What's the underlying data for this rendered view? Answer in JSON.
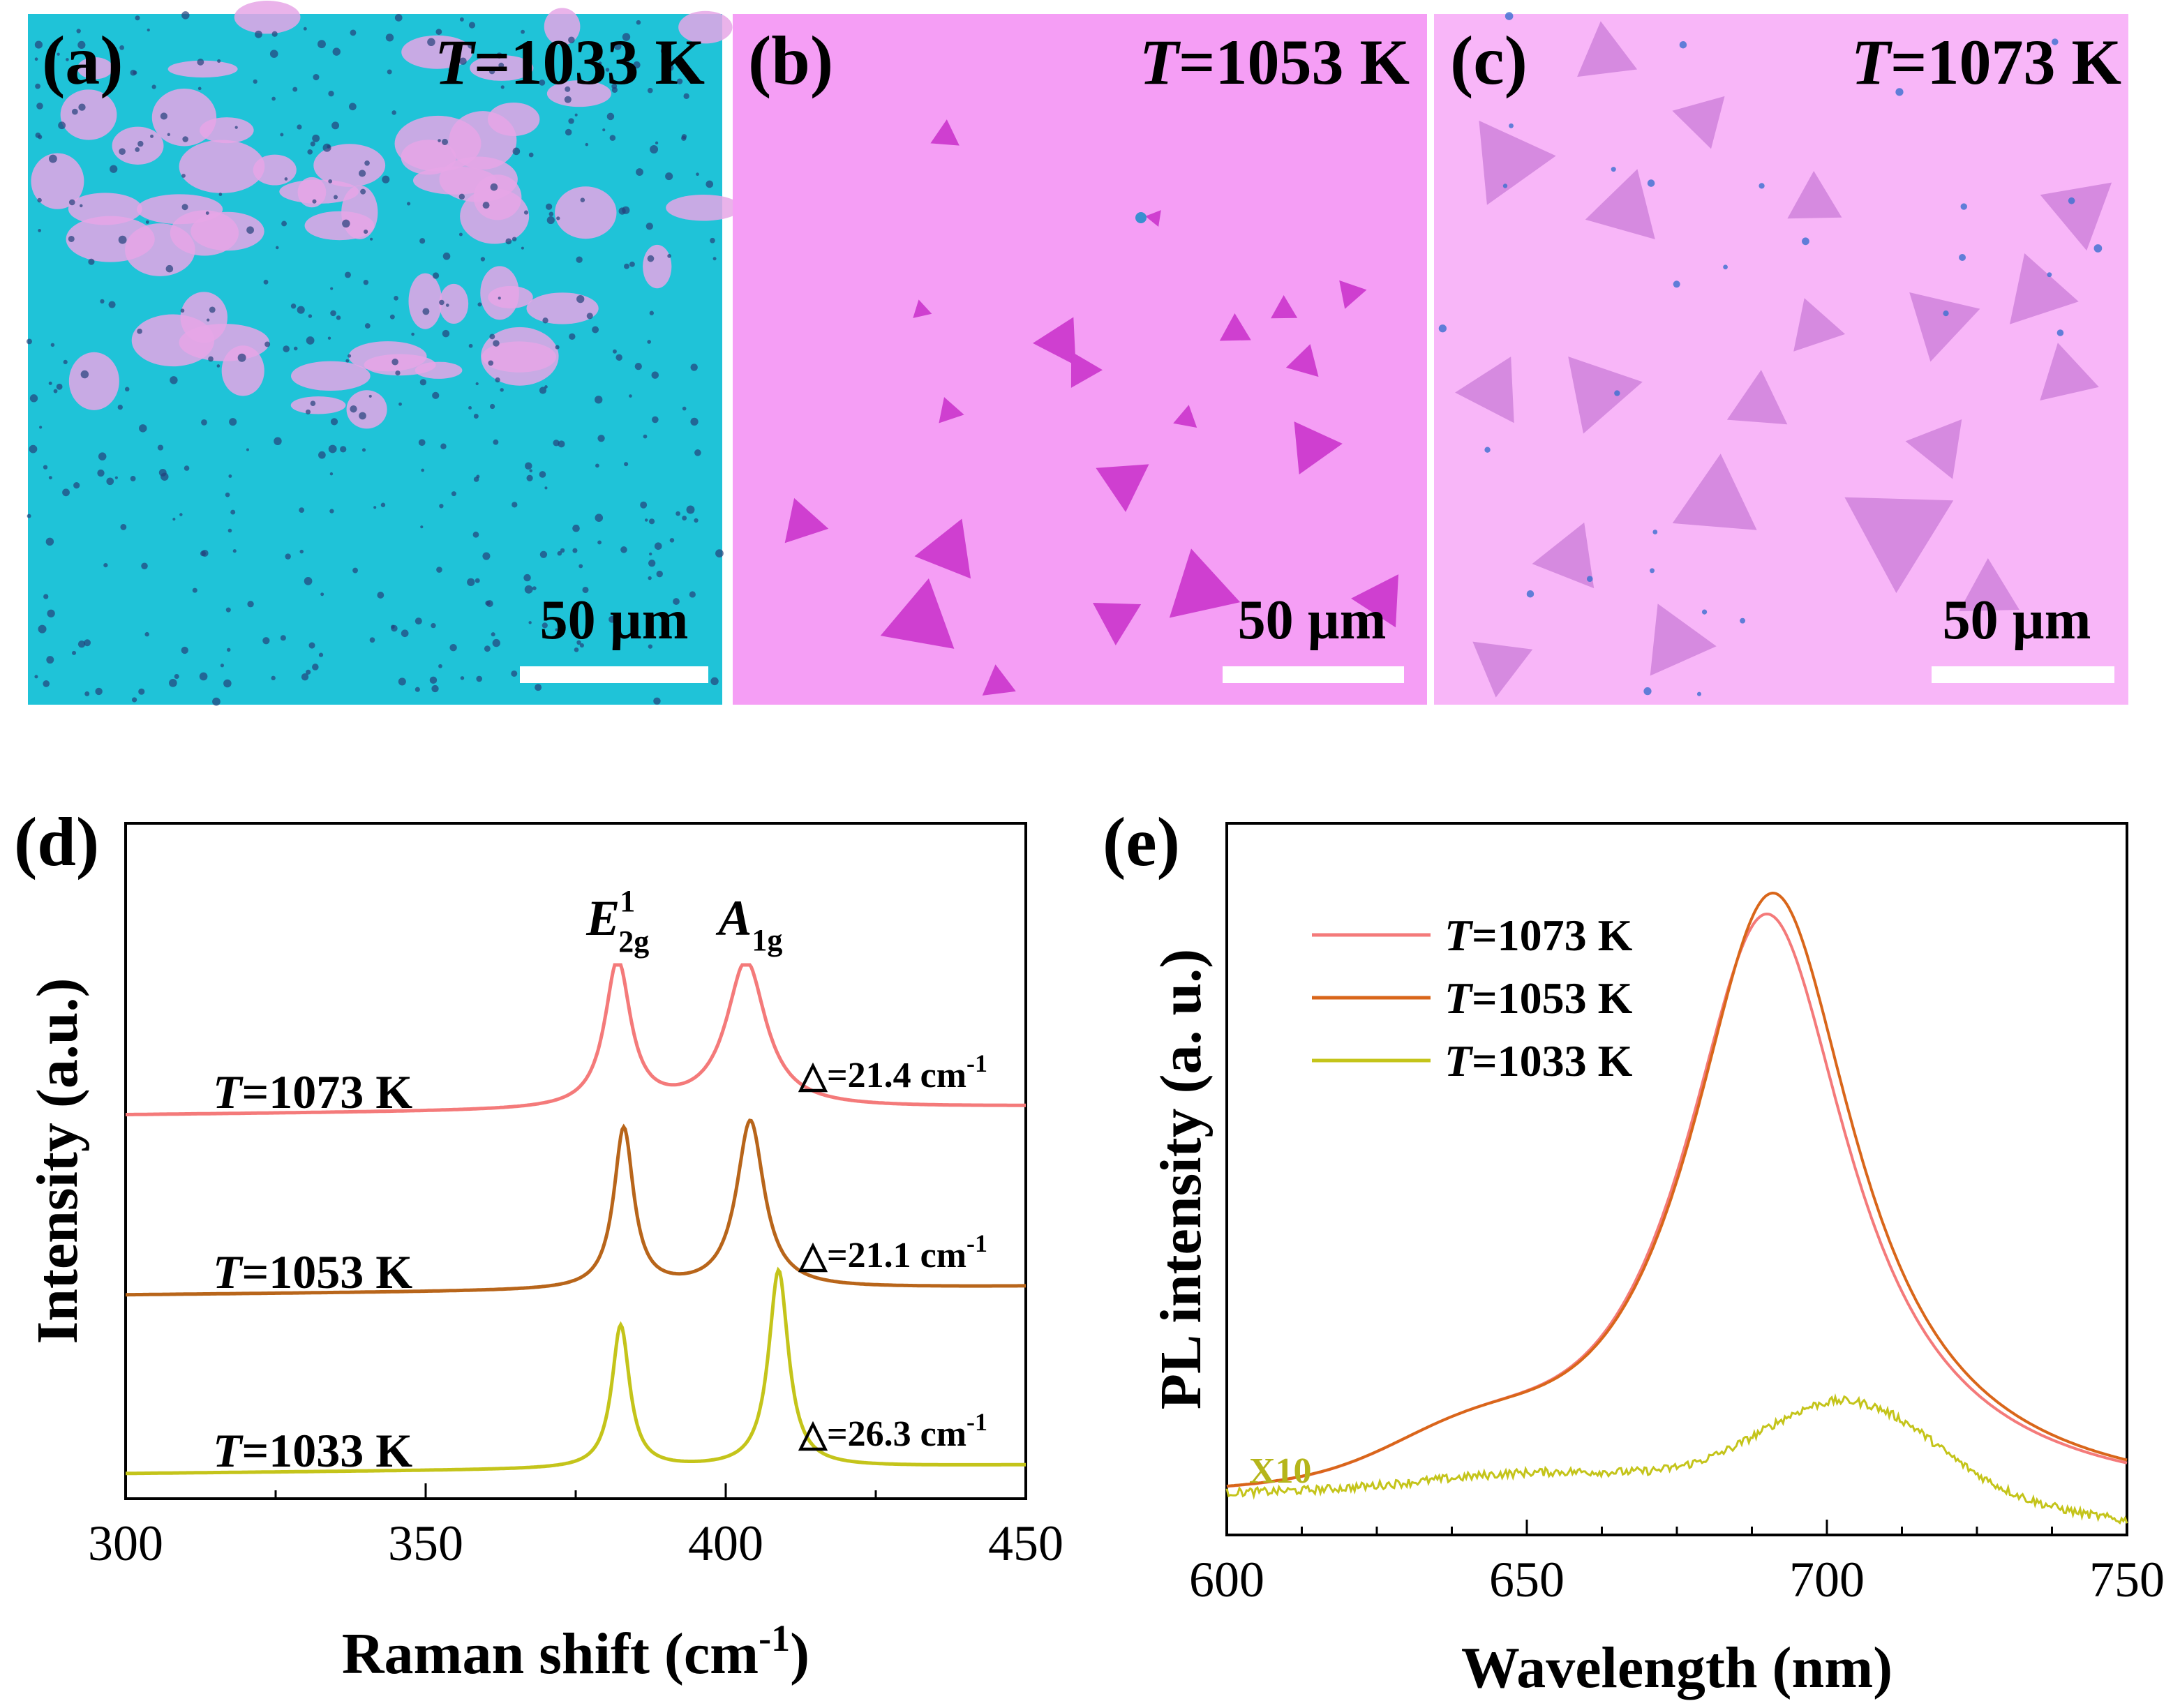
{
  "panels_top": [
    {
      "tag": "(a)",
      "t_prefix": "T",
      "temp": "=1033 K",
      "scale": "50 µm",
      "color": "#1fc3d8"
    },
    {
      "tag": "(b)",
      "t_prefix": "T",
      "temp": "=1053 K",
      "scale": "50 µm",
      "color": "#f59ef5"
    },
    {
      "tag": "(c)",
      "t_prefix": "T",
      "temp": "=1073 K",
      "scale": "50 µm",
      "color": "#f8b6f8"
    }
  ],
  "chart_data": [
    {
      "panel": "(d)",
      "type": "line",
      "xlabel": "Raman shift (cm",
      "xlabel_sup": "-1",
      "xlabel_end": ")",
      "ylabel": "Intensity (a.u.)",
      "xlim": [
        300,
        450
      ],
      "xticks": [
        "300",
        "350",
        "400",
        "450"
      ],
      "peak_labels": [
        {
          "main": "E",
          "sup": "1",
          "sub": "2g",
          "x": 382
        },
        {
          "main": "A",
          "sub": "1g",
          "x": 404
        }
      ],
      "series": [
        {
          "name": "T=1073 K",
          "prefix": "T",
          "label": "=1073 K",
          "color": "#f47a7a",
          "peaks": [
            382,
            403.4
          ],
          "delta": "△=21.4 cm",
          "delta_sup": "-1"
        },
        {
          "name": "T=1053 K",
          "prefix": "T",
          "label": "=1053 K",
          "color": "#b8651a",
          "peaks": [
            383,
            404.1
          ],
          "delta": "△=21.1 cm",
          "delta_sup": "-1"
        },
        {
          "name": "T=1033 K",
          "prefix": "T",
          "label": "=1033 K",
          "color": "#c4c41a",
          "peaks": [
            382.5,
            408.8
          ],
          "delta": "△=26.3 cm",
          "delta_sup": "-1"
        }
      ]
    },
    {
      "panel": "(e)",
      "type": "line",
      "xlabel": "Wavelength (nm)",
      "ylabel": "PL intensity (a. u.)",
      "xlim": [
        600,
        750
      ],
      "xticks": [
        "600",
        "650",
        "700",
        "750"
      ],
      "annotation": "X10",
      "legend_position": "top-left",
      "series": [
        {
          "name": "T=1073 K",
          "prefix": "T",
          "label": "=1073 K",
          "color": "#f47a7a",
          "peak_x": 690,
          "peak_y": 0.85
        },
        {
          "name": "T=1053 K",
          "prefix": "T",
          "label": "=1053 K",
          "color": "#d9661a",
          "peak_x": 691,
          "peak_y": 0.88
        },
        {
          "name": "T=1033 K",
          "prefix": "T",
          "label": "=1033 K",
          "color": "#c4c41a",
          "peak_x": 703,
          "peak_y": 0.19
        }
      ]
    }
  ]
}
